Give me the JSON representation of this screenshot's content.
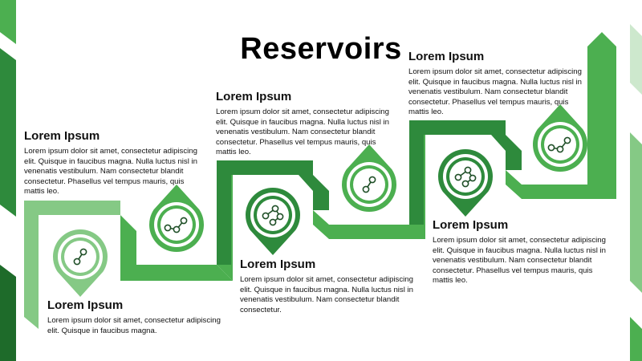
{
  "title": "Reservoirs",
  "colors": {
    "dark": "#2e8a3c",
    "mid": "#4caf50",
    "light": "#85c985",
    "deep": "#1e6b2a",
    "pale": "#cde8cd"
  },
  "steps": [
    {
      "heading": "Lorem Ipsum",
      "body": "Lorem ipsum dolor sit amet, consectetur adipiscing elit. Quisque in faucibus magna.",
      "icon": "molecule-icon"
    },
    {
      "heading": "Lorem Ipsum",
      "body": "Lorem ipsum dolor sit amet, consectetur adipiscing elit. Quisque in faucibus magna. Nulla luctus nisl in venenatis vestibulum. Nam consectetur blandit consectetur. Phasellus vel tempus mauris, quis mattis leo.",
      "icon": "molecule-icon"
    },
    {
      "heading": "Lorem Ipsum",
      "body": "Lorem ipsum dolor sit amet, consectetur adipiscing elit. Quisque in faucibus magna. Nulla luctus nisl in venenatis vestibulum. Nam consectetur blandit consectetur.",
      "icon": "molecule-icon"
    },
    {
      "heading": "Lorem Ipsum",
      "body": "Lorem ipsum dolor sit amet, consectetur adipiscing elit. Quisque in faucibus magna. Nulla luctus nisl in venenatis vestibulum. Nam consectetur blandit consectetur. Phasellus vel tempus mauris, quis mattis leo.",
      "icon": "molecule-icon"
    },
    {
      "heading": "Lorem Ipsum",
      "body": "Lorem ipsum dolor sit amet, consectetur adipiscing elit. Quisque in faucibus magna. Nulla luctus nisl in venenatis vestibulum. Nam consectetur blandit consectetur. Phasellus vel tempus mauris, quis mattis leo.",
      "icon": "molecule-icon"
    },
    {
      "heading": "Lorem Ipsum",
      "body": "Lorem ipsum dolor sit amet, consectetur adipiscing elit. Quisque in faucibus magna. Nulla luctus nisl in venenatis vestibulum. Nam consectetur blandit consectetur. Phasellus vel tempus mauris, quis mattis leo.",
      "icon": "molecule-icon"
    }
  ]
}
